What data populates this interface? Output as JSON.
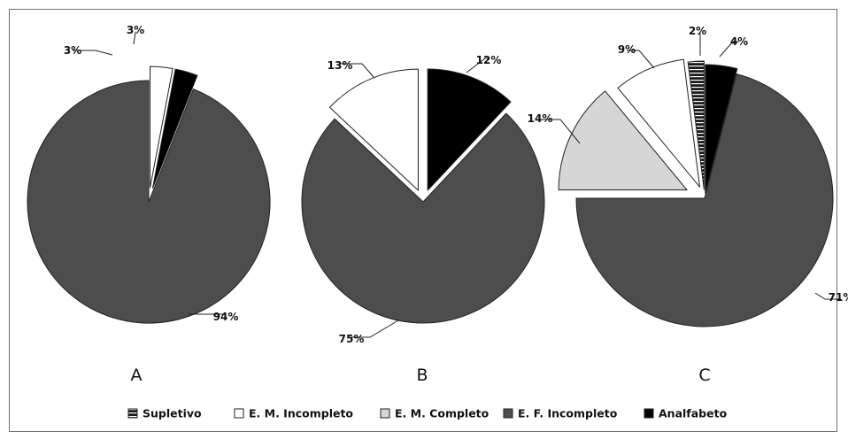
{
  "chart_data": [
    {
      "type": "pie",
      "panel_label": "A",
      "slices": [
        {
          "category": "E. M. Incompleto",
          "value": 3,
          "label": "3%"
        },
        {
          "category": "Analfabeto",
          "value": 3,
          "label": "3%"
        },
        {
          "category": "E. F. Incompleto",
          "value": 94,
          "label": "94%"
        }
      ]
    },
    {
      "type": "pie",
      "panel_label": "B",
      "slices": [
        {
          "category": "Analfabeto",
          "value": 12,
          "label": "12%"
        },
        {
          "category": "E. F. Incompleto",
          "value": 75,
          "label": "75%"
        },
        {
          "category": "E. M. Incompleto",
          "value": 13,
          "label": "13%"
        }
      ]
    },
    {
      "type": "pie",
      "panel_label": "C",
      "slices": [
        {
          "category": "Analfabeto",
          "value": 4,
          "label": "4%"
        },
        {
          "category": "E. F. Incompleto",
          "value": 71,
          "label": "71%"
        },
        {
          "category": "E. M. Completo",
          "value": 14,
          "label": "14%"
        },
        {
          "category": "E. M. Incompleto",
          "value": 9,
          "label": "9%"
        },
        {
          "category": "Supletivo",
          "value": 2,
          "label": "2%"
        }
      ]
    }
  ],
  "legend": {
    "placement": "bottom",
    "items": [
      {
        "label": "Supletivo",
        "color": "#1a1a1a",
        "pattern": "striped"
      },
      {
        "label": "E. M. Incompleto",
        "color": "#ffffff"
      },
      {
        "label": "E. M. Completo",
        "color": "#d6d6d6"
      },
      {
        "label": "E. F. Incompleto",
        "color": "#4d4d4d"
      },
      {
        "label": "Analfabeto",
        "color": "#000000"
      }
    ]
  }
}
